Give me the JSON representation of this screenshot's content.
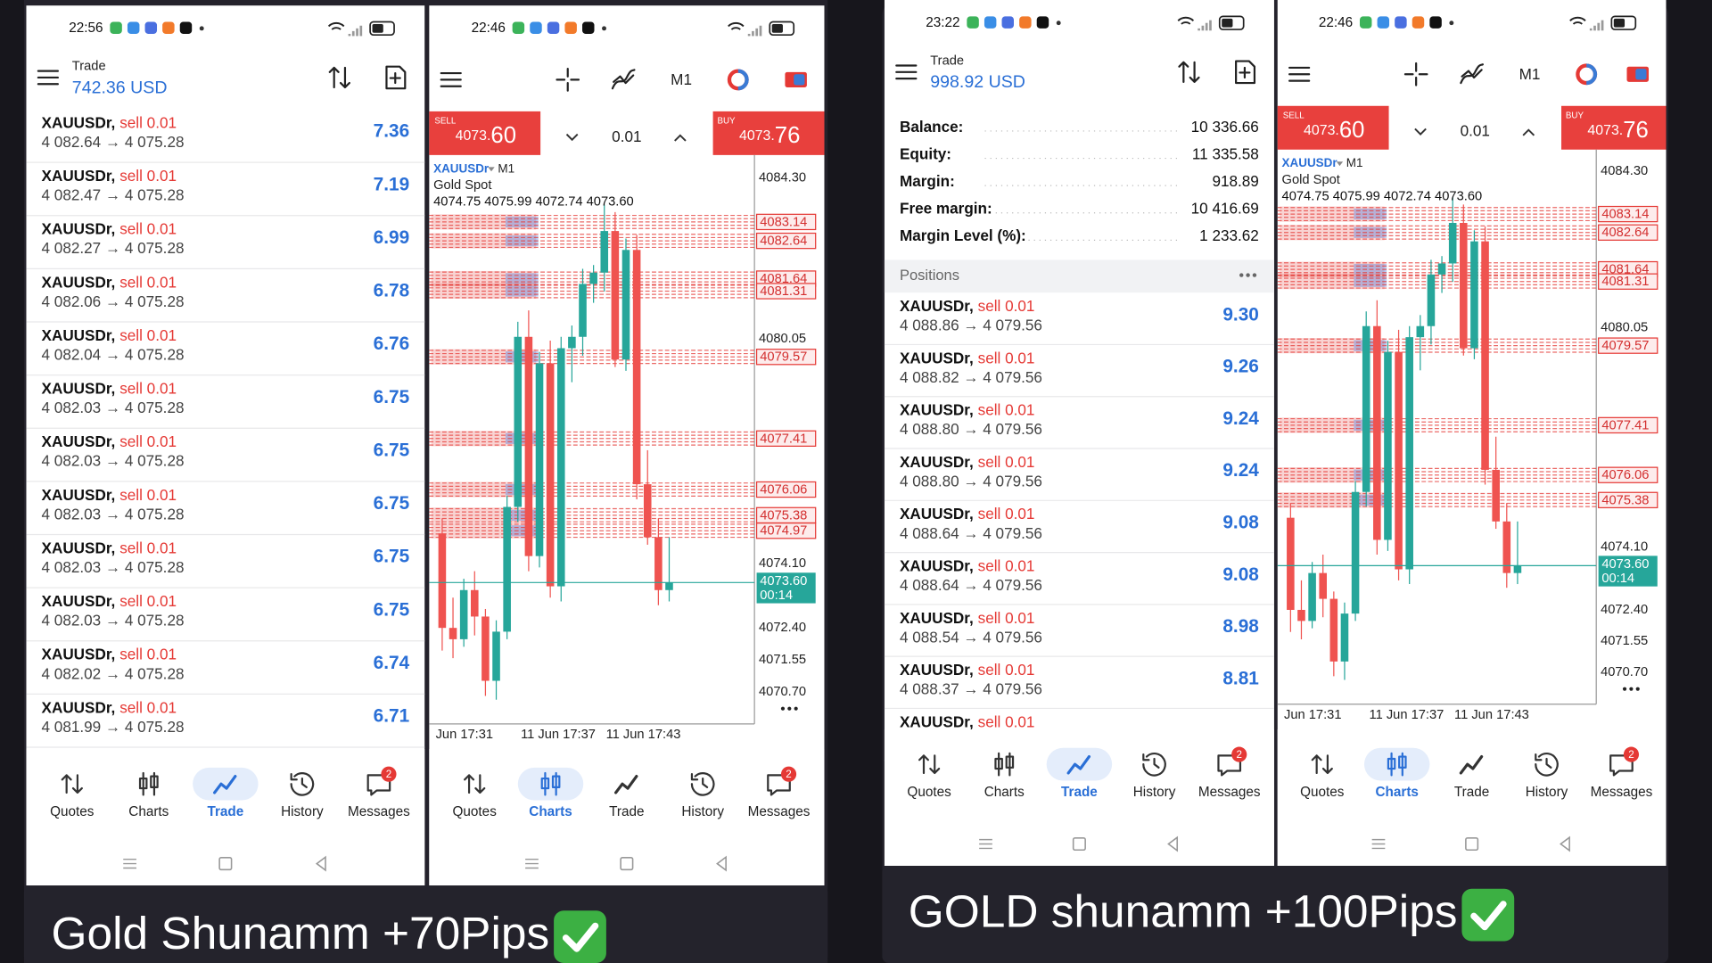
{
  "left": {
    "trade_screen": {
      "status_time": "22:56",
      "header_label": "Trade",
      "balance": "742.36 USD",
      "positions": [
        {
          "symbol": "XAUUSDr,",
          "side": "sell 0.01",
          "prices": "4 082.64 → 4 075.28",
          "profit": "7.36"
        },
        {
          "symbol": "XAUUSDr,",
          "side": "sell 0.01",
          "prices": "4 082.47 → 4 075.28",
          "profit": "7.19"
        },
        {
          "symbol": "XAUUSDr,",
          "side": "sell 0.01",
          "prices": "4 082.27 → 4 075.28",
          "profit": "6.99"
        },
        {
          "symbol": "XAUUSDr,",
          "side": "sell 0.01",
          "prices": "4 082.06 → 4 075.28",
          "profit": "6.78"
        },
        {
          "symbol": "XAUUSDr,",
          "side": "sell 0.01",
          "prices": "4 082.04 → 4 075.28",
          "profit": "6.76"
        },
        {
          "symbol": "XAUUSDr,",
          "side": "sell 0.01",
          "prices": "4 082.03 → 4 075.28",
          "profit": "6.75"
        },
        {
          "symbol": "XAUUSDr,",
          "side": "sell 0.01",
          "prices": "4 082.03 → 4 075.28",
          "profit": "6.75"
        },
        {
          "symbol": "XAUUSDr,",
          "side": "sell 0.01",
          "prices": "4 082.03 → 4 075.28",
          "profit": "6.75"
        },
        {
          "symbol": "XAUUSDr,",
          "side": "sell 0.01",
          "prices": "4 082.03 → 4 075.28",
          "profit": "6.75"
        },
        {
          "symbol": "XAUUSDr,",
          "side": "sell 0.01",
          "prices": "4 082.03 → 4 075.28",
          "profit": "6.75"
        },
        {
          "symbol": "XAUUSDr,",
          "side": "sell 0.01",
          "prices": "4 082.02 → 4 075.28",
          "profit": "6.74"
        },
        {
          "symbol": "XAUUSDr,",
          "side": "sell 0.01",
          "prices": "4 081.99 → 4 075.28",
          "profit": "6.71"
        }
      ],
      "nav": [
        "Quotes",
        "Charts",
        "Trade",
        "History",
        "Messages"
      ],
      "active_tab": "Trade",
      "badge": "2"
    },
    "chart_screen": {
      "status_time": "22:46",
      "timeframe": "M1",
      "sell_label": "SELL",
      "sell_price_main": "4073.",
      "sell_price_pips": "60",
      "lot": "0.01",
      "buy_label": "BUY",
      "buy_price_main": "4073.",
      "buy_price_pips": "76",
      "chart": {
        "symbol": "XAUUSDr",
        "period": "M1",
        "description": "Gold Spot",
        "ohlc": "4074.75 4075.99 4072.74 4073.60",
        "ylim": [
          4069.86,
          4084.91
        ],
        "price_labels": [
          "4084.30",
          "4080.05",
          "4074.10",
          "4072.40",
          "4071.55",
          "4070.70"
        ],
        "order_labels": [
          "4083.14",
          "4082.64",
          "4081.64",
          "4081.31",
          "4079.57",
          "4077.41",
          "4076.06",
          "4075.38",
          "4074.97"
        ],
        "current_price": "4073.60",
        "timer": "00:14",
        "time_labels": [
          "Jun 17:31",
          "11 Jun 17:37",
          "11 Jun 17:43"
        ],
        "candles": [
          [
            4074.9,
            4075.3,
            4071.8,
            4072.4
          ],
          [
            4072.4,
            4073.2,
            4071.6,
            4072.1
          ],
          [
            4072.1,
            4073.7,
            4071.9,
            4073.4
          ],
          [
            4073.4,
            4073.9,
            4072.2,
            4072.7
          ],
          [
            4072.7,
            4072.9,
            4070.6,
            4071.0
          ],
          [
            4071.0,
            4072.6,
            4070.5,
            4072.3
          ],
          [
            4072.3,
            4075.9,
            4072.1,
            4075.6
          ],
          [
            4075.6,
            4080.5,
            4075.2,
            4080.1
          ],
          [
            4080.1,
            4080.8,
            4073.9,
            4074.3
          ],
          [
            4074.3,
            4079.7,
            4074.0,
            4079.4
          ],
          [
            4079.4,
            4080.0,
            4073.2,
            4073.5
          ],
          [
            4073.5,
            4080.1,
            4073.1,
            4079.8
          ],
          [
            4079.8,
            4080.4,
            4078.9,
            4080.1
          ],
          [
            4080.1,
            4081.9,
            4079.6,
            4081.5
          ],
          [
            4081.5,
            4082.0,
            4081.0,
            4081.8
          ],
          [
            4081.8,
            4083.6,
            4081.3,
            4082.9
          ],
          [
            4082.9,
            4083.4,
            4079.3,
            4079.5
          ],
          [
            4079.5,
            4082.7,
            4079.2,
            4082.4
          ],
          [
            4082.4,
            4082.8,
            4075.8,
            4076.2
          ],
          [
            4076.2,
            4077.1,
            4074.6,
            4074.8
          ],
          [
            4074.8,
            4075.3,
            4073.0,
            4073.4
          ],
          [
            4073.4,
            4074.8,
            4073.1,
            4073.6
          ]
        ]
      },
      "nav": [
        "Quotes",
        "Charts",
        "Trade",
        "History",
        "Messages"
      ],
      "active_tab": "Charts",
      "badge": "2"
    },
    "caption": "Gold Shunamm +70Pips"
  },
  "right": {
    "trade_screen": {
      "status_time": "23:22",
      "header_label": "Trade",
      "balance": "998.92 USD",
      "stats": [
        {
          "label": "Balance:",
          "value": "10 336.66"
        },
        {
          "label": "Equity:",
          "value": "11 335.58"
        },
        {
          "label": "Margin:",
          "value": "918.89"
        },
        {
          "label": "Free margin:",
          "value": "10 416.69"
        },
        {
          "label": "Margin Level (%):",
          "value": "1 233.62"
        }
      ],
      "positions_header": "Positions",
      "positions": [
        {
          "symbol": "XAUUSDr,",
          "side": "sell 0.01",
          "prices": "4 088.86 → 4 079.56",
          "profit": "9.30"
        },
        {
          "symbol": "XAUUSDr,",
          "side": "sell 0.01",
          "prices": "4 088.82 → 4 079.56",
          "profit": "9.26"
        },
        {
          "symbol": "XAUUSDr,",
          "side": "sell 0.01",
          "prices": "4 088.80 → 4 079.56",
          "profit": "9.24"
        },
        {
          "symbol": "XAUUSDr,",
          "side": "sell 0.01",
          "prices": "4 088.80 → 4 079.56",
          "profit": "9.24"
        },
        {
          "symbol": "XAUUSDr,",
          "side": "sell 0.01",
          "prices": "4 088.64 → 4 079.56",
          "profit": "9.08"
        },
        {
          "symbol": "XAUUSDr,",
          "side": "sell 0.01",
          "prices": "4 088.64 → 4 079.56",
          "profit": "9.08"
        },
        {
          "symbol": "XAUUSDr,",
          "side": "sell 0.01",
          "prices": "4 088.54 → 4 079.56",
          "profit": "8.98"
        },
        {
          "symbol": "XAUUSDr,",
          "side": "sell 0.01",
          "prices": "4 088.37 → 4 079.56",
          "profit": "8.81"
        },
        {
          "symbol": "XAUUSDr,",
          "side": "sell 0.01"
        }
      ],
      "nav": [
        "Quotes",
        "Charts",
        "Trade",
        "History",
        "Messages"
      ],
      "active_tab": "Trade",
      "badge": "2"
    },
    "chart_screen": {
      "status_time": "22:46",
      "timeframe": "M1",
      "sell_label": "SELL",
      "sell_price_main": "4073.",
      "sell_price_pips": "60",
      "lot": "0.01",
      "buy_label": "BUY",
      "buy_price_main": "4073.",
      "buy_price_pips": "76",
      "chart": {
        "symbol": "XAUUSDr",
        "period": "M1",
        "description": "Gold Spot",
        "ohlc": "4074.75 4075.99 4072.74 4073.60",
        "ylim": [
          4069.84,
          4084.89
        ],
        "price_labels": [
          "4084.30",
          "4080.05",
          "4074.10",
          "4072.40",
          "4071.55",
          "4070.70"
        ],
        "order_labels": [
          "4083.14",
          "4082.64",
          "4081.64",
          "4081.31",
          "4079.57",
          "4077.41",
          "4076.06",
          "4075.38"
        ],
        "current_price": "4073.60",
        "timer": "00:14",
        "time_labels": [
          "Jun 17:31",
          "11 Jun 17:37",
          "11 Jun 17:43"
        ],
        "candles": [
          [
            4074.9,
            4075.3,
            4071.8,
            4072.4
          ],
          [
            4072.4,
            4073.2,
            4071.6,
            4072.1
          ],
          [
            4072.1,
            4073.7,
            4071.9,
            4073.4
          ],
          [
            4073.4,
            4073.9,
            4072.2,
            4072.7
          ],
          [
            4072.7,
            4072.9,
            4070.6,
            4071.0
          ],
          [
            4071.0,
            4072.6,
            4070.5,
            4072.3
          ],
          [
            4072.3,
            4075.9,
            4072.1,
            4075.6
          ],
          [
            4075.6,
            4080.5,
            4075.2,
            4080.1
          ],
          [
            4080.1,
            4080.8,
            4073.9,
            4074.3
          ],
          [
            4074.3,
            4079.7,
            4074.0,
            4079.4
          ],
          [
            4079.4,
            4080.0,
            4073.2,
            4073.5
          ],
          [
            4073.5,
            4080.1,
            4073.1,
            4079.8
          ],
          [
            4079.8,
            4080.4,
            4078.9,
            4080.1
          ],
          [
            4080.1,
            4081.9,
            4079.6,
            4081.5
          ],
          [
            4081.5,
            4082.0,
            4081.0,
            4081.8
          ],
          [
            4081.8,
            4083.6,
            4081.3,
            4082.9
          ],
          [
            4082.9,
            4083.4,
            4079.3,
            4079.5
          ],
          [
            4079.5,
            4082.7,
            4079.2,
            4082.4
          ],
          [
            4082.4,
            4082.8,
            4075.8,
            4076.2
          ],
          [
            4076.2,
            4077.1,
            4074.6,
            4074.8
          ],
          [
            4074.8,
            4075.3,
            4073.0,
            4073.4
          ],
          [
            4073.4,
            4074.8,
            4073.1,
            4073.6
          ]
        ]
      },
      "nav": [
        "Quotes",
        "Charts",
        "Trade",
        "History",
        "Messages"
      ],
      "active_tab": "Charts",
      "badge": "2"
    },
    "caption": "GOLD shunamm +100Pips"
  }
}
